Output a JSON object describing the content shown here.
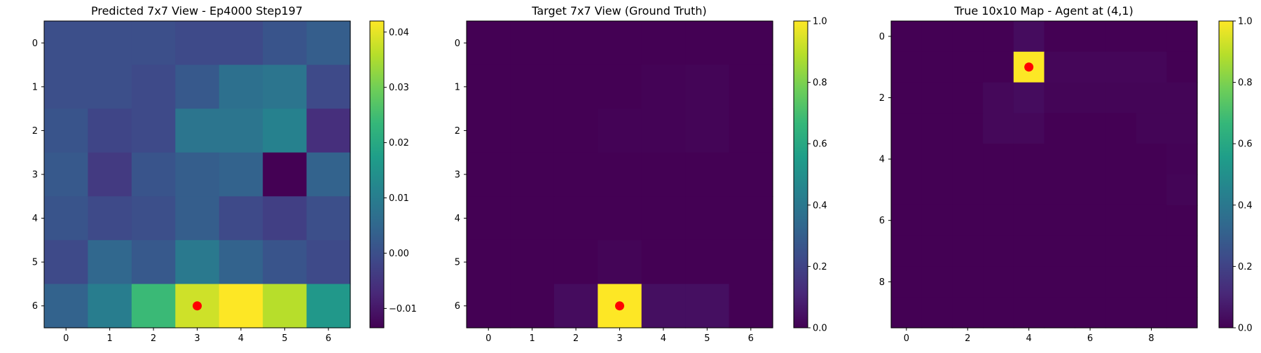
{
  "chart_data": [
    {
      "type": "heatmap",
      "title": "Predicted 7x7 View - Ep4000 Step197",
      "x_ticks": [
        "0",
        "1",
        "2",
        "3",
        "4",
        "5",
        "6"
      ],
      "y_ticks": [
        "0",
        "1",
        "2",
        "3",
        "4",
        "5",
        "6"
      ],
      "colorbar_ticks": [
        "−0.01",
        "0.00",
        "0.01",
        "0.02",
        "0.03",
        "0.04"
      ],
      "vmin": -0.0135,
      "vmax": 0.042,
      "colormap": "viridis",
      "values": [
        [
          0.0,
          0.0,
          0.0,
          -0.001,
          -0.001,
          0.001,
          0.003
        ],
        [
          0.0,
          0.0,
          -0.001,
          0.002,
          0.007,
          0.008,
          -0.001
        ],
        [
          0.001,
          -0.002,
          -0.001,
          0.008,
          0.008,
          0.011,
          -0.006
        ],
        [
          0.002,
          -0.004,
          0.001,
          0.003,
          0.004,
          -0.0135,
          0.004
        ],
        [
          0.001,
          -0.001,
          0.0,
          0.003,
          -0.001,
          -0.003,
          0.0
        ],
        [
          -0.001,
          0.005,
          0.002,
          0.009,
          0.004,
          0.001,
          -0.001
        ],
        [
          0.004,
          0.01,
          0.024,
          0.038,
          0.042,
          0.036,
          0.016
        ]
      ],
      "marker": {
        "x": 3,
        "y": 6,
        "color": "#ff0000"
      }
    },
    {
      "type": "heatmap",
      "title": "Target 7x7 View (Ground Truth)",
      "x_ticks": [
        "0",
        "1",
        "2",
        "3",
        "4",
        "5",
        "6"
      ],
      "y_ticks": [
        "0",
        "1",
        "2",
        "3",
        "4",
        "5",
        "6"
      ],
      "colorbar_ticks": [
        "0.0",
        "0.2",
        "0.4",
        "0.6",
        "0.8",
        "1.0"
      ],
      "vmin": 0,
      "vmax": 1,
      "colormap": "viridis",
      "values": [
        [
          0,
          0,
          0,
          0,
          0,
          0,
          0
        ],
        [
          0,
          0,
          0,
          0,
          0.005,
          0.01,
          0
        ],
        [
          0,
          0,
          0,
          0.005,
          0.005,
          0.01,
          0
        ],
        [
          0,
          0,
          0,
          0,
          0,
          0,
          0
        ],
        [
          0,
          0,
          0,
          0,
          0,
          0,
          0
        ],
        [
          0,
          0,
          0,
          0.01,
          0,
          0,
          0
        ],
        [
          0,
          0,
          0.03,
          1.0,
          0.04,
          0.04,
          0
        ]
      ],
      "marker": {
        "x": 3,
        "y": 6,
        "color": "#ff0000"
      }
    },
    {
      "type": "heatmap",
      "title": "True 10x10 Map - Agent at (4,1)",
      "x_ticks": [
        "0",
        "2",
        "4",
        "6",
        "8"
      ],
      "y_ticks": [
        "0",
        "2",
        "4",
        "6",
        "8"
      ],
      "tick_step": 2,
      "colorbar_ticks": [
        "0.0",
        "0.2",
        "0.4",
        "0.6",
        "0.8",
        "1.0"
      ],
      "vmin": 0,
      "vmax": 1,
      "colormap": "viridis",
      "values": [
        [
          0,
          0,
          0,
          0,
          0.03,
          0,
          0,
          0,
          0,
          0
        ],
        [
          0,
          0,
          0,
          0,
          1.0,
          0.015,
          0.015,
          0.015,
          0.015,
          0
        ],
        [
          0,
          0,
          0,
          0.02,
          0.03,
          0.01,
          0.01,
          0.01,
          0.01,
          0.01
        ],
        [
          0,
          0,
          0,
          0.02,
          0.02,
          0,
          0,
          0,
          0.01,
          0.01
        ],
        [
          0,
          0,
          0,
          0,
          0,
          0,
          0,
          0,
          0,
          0.005
        ],
        [
          0,
          0,
          0,
          0,
          0,
          0,
          0,
          0,
          0,
          0.01
        ],
        [
          0,
          0,
          0,
          0,
          0,
          0,
          0,
          0,
          0,
          0
        ],
        [
          0,
          0,
          0,
          0,
          0,
          0,
          0,
          0,
          0,
          0
        ],
        [
          0,
          0,
          0,
          0,
          0,
          0,
          0,
          0,
          0,
          0
        ],
        [
          0,
          0,
          0,
          0,
          0,
          0,
          0,
          0,
          0,
          0
        ]
      ],
      "marker": {
        "x": 4,
        "y": 1,
        "color": "#ff0000"
      }
    }
  ]
}
